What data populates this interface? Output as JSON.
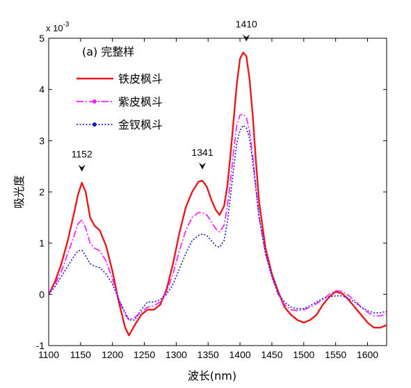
{
  "chart_data": {
    "type": "line",
    "title": "",
    "xlabel": "波长(nm)",
    "ylabel": "吸光度",
    "y_multiplier": "x 10",
    "y_multiplier_exp": "-3",
    "xlim": [
      1100,
      1630
    ],
    "ylim": [
      -1,
      5
    ],
    "xticks": [
      1100,
      1150,
      1200,
      1250,
      1300,
      1350,
      1400,
      1450,
      1500,
      1550,
      1600
    ],
    "yticks": [
      -1,
      0,
      1,
      2,
      3,
      4,
      5
    ],
    "grid": false,
    "legend_title": "(a) 完整样",
    "legend_position": "top-left",
    "series": [
      {
        "name": "铁皮枫斗",
        "color": "#e8171c",
        "style": "solid",
        "x": [
          1100,
          1110,
          1120,
          1130,
          1140,
          1146,
          1152,
          1158,
          1165,
          1172,
          1180,
          1190,
          1200,
          1210,
          1220,
          1226,
          1235,
          1245,
          1255,
          1265,
          1275,
          1285,
          1295,
          1305,
          1315,
          1325,
          1335,
          1341,
          1348,
          1355,
          1362,
          1368,
          1375,
          1380,
          1385,
          1390,
          1395,
          1400,
          1405,
          1410,
          1415,
          1420,
          1425,
          1430,
          1440,
          1450,
          1460,
          1470,
          1480,
          1490,
          1500,
          1510,
          1520,
          1530,
          1540,
          1550,
          1560,
          1570,
          1580,
          1590,
          1600,
          1610,
          1620,
          1630
        ],
        "y": [
          0.0,
          0.25,
          0.6,
          1.05,
          1.6,
          1.95,
          2.18,
          2.0,
          1.5,
          1.34,
          1.25,
          0.95,
          0.45,
          -0.15,
          -0.65,
          -0.8,
          -0.6,
          -0.4,
          -0.3,
          -0.3,
          -0.2,
          0.1,
          0.6,
          1.2,
          1.7,
          2.0,
          2.2,
          2.22,
          2.1,
          1.85,
          1.65,
          1.55,
          1.72,
          2.1,
          2.7,
          3.4,
          4.1,
          4.6,
          4.72,
          4.65,
          4.2,
          3.5,
          2.6,
          1.8,
          0.9,
          0.4,
          0.05,
          -0.25,
          -0.4,
          -0.5,
          -0.55,
          -0.5,
          -0.4,
          -0.2,
          -0.05,
          0.05,
          0.02,
          -0.1,
          -0.25,
          -0.4,
          -0.55,
          -0.65,
          -0.65,
          -0.6
        ]
      },
      {
        "name": "紫皮枫斗",
        "color": "#ff1aff",
        "style": "dashdot",
        "x": [
          1100,
          1110,
          1120,
          1130,
          1140,
          1146,
          1152,
          1158,
          1165,
          1172,
          1180,
          1190,
          1200,
          1210,
          1220,
          1226,
          1235,
          1245,
          1255,
          1265,
          1275,
          1285,
          1295,
          1305,
          1315,
          1325,
          1335,
          1341,
          1348,
          1355,
          1362,
          1368,
          1375,
          1380,
          1385,
          1390,
          1395,
          1400,
          1405,
          1410,
          1415,
          1420,
          1425,
          1430,
          1440,
          1450,
          1460,
          1470,
          1480,
          1490,
          1500,
          1510,
          1520,
          1530,
          1540,
          1550,
          1560,
          1570,
          1580,
          1590,
          1600,
          1610,
          1620,
          1630
        ],
        "y": [
          0.0,
          0.2,
          0.45,
          0.8,
          1.15,
          1.38,
          1.45,
          1.3,
          1.0,
          0.9,
          0.85,
          0.65,
          0.3,
          -0.1,
          -0.4,
          -0.5,
          -0.45,
          -0.35,
          -0.25,
          -0.22,
          -0.15,
          0.05,
          0.4,
          0.85,
          1.25,
          1.5,
          1.6,
          1.6,
          1.55,
          1.42,
          1.28,
          1.22,
          1.35,
          1.7,
          2.2,
          2.8,
          3.3,
          3.5,
          3.52,
          3.45,
          3.2,
          2.7,
          2.1,
          1.5,
          0.8,
          0.35,
          0.0,
          -0.2,
          -0.3,
          -0.32,
          -0.3,
          -0.25,
          -0.18,
          -0.1,
          0.0,
          0.07,
          0.06,
          -0.02,
          -0.12,
          -0.25,
          -0.35,
          -0.42,
          -0.42,
          -0.38
        ]
      },
      {
        "name": "金钗枫斗",
        "color": "#1a1ad4",
        "style": "dotted",
        "x": [
          1100,
          1110,
          1120,
          1130,
          1140,
          1146,
          1152,
          1158,
          1165,
          1172,
          1180,
          1190,
          1200,
          1210,
          1220,
          1226,
          1235,
          1245,
          1255,
          1265,
          1275,
          1285,
          1295,
          1305,
          1315,
          1325,
          1335,
          1341,
          1348,
          1355,
          1362,
          1368,
          1375,
          1380,
          1385,
          1390,
          1395,
          1400,
          1405,
          1410,
          1415,
          1420,
          1425,
          1430,
          1440,
          1450,
          1460,
          1470,
          1480,
          1490,
          1500,
          1510,
          1520,
          1530,
          1540,
          1550,
          1560,
          1570,
          1580,
          1590,
          1600,
          1610,
          1620,
          1630
        ],
        "y": [
          0.0,
          0.15,
          0.35,
          0.55,
          0.75,
          0.85,
          0.86,
          0.75,
          0.6,
          0.55,
          0.52,
          0.4,
          0.2,
          -0.1,
          -0.35,
          -0.5,
          -0.5,
          -0.3,
          -0.15,
          -0.15,
          -0.1,
          0.0,
          0.2,
          0.5,
          0.8,
          1.05,
          1.15,
          1.18,
          1.15,
          1.05,
          0.95,
          0.92,
          1.05,
          1.4,
          1.9,
          2.45,
          2.95,
          3.2,
          3.3,
          3.25,
          3.05,
          2.6,
          2.05,
          1.5,
          0.8,
          0.35,
          0.0,
          -0.15,
          -0.25,
          -0.28,
          -0.28,
          -0.22,
          -0.15,
          -0.08,
          -0.05,
          -0.03,
          -0.03,
          -0.08,
          -0.15,
          -0.25,
          -0.32,
          -0.36,
          -0.36,
          -0.33
        ]
      }
    ],
    "annotations": [
      {
        "label": "1152",
        "x": 1152,
        "y": 2.18
      },
      {
        "label": "1341",
        "x": 1341,
        "y": 2.22
      },
      {
        "label": "1410",
        "x": 1410,
        "y": 4.72
      }
    ]
  }
}
